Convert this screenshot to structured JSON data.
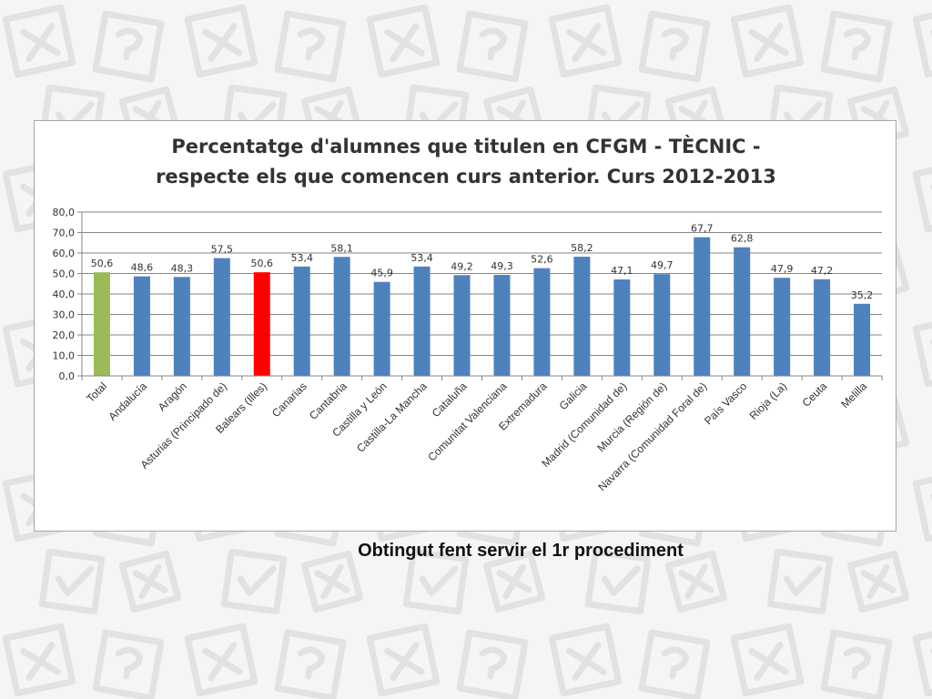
{
  "colors": {
    "bar_default": "#4f81bd",
    "bar_total": "#9bbb59",
    "bar_highlight": "#ff0000",
    "grid": "#868686",
    "text": "#333333"
  },
  "caption": "Obtingut fent servir el 1r procediment",
  "chart_data": {
    "type": "bar",
    "title_line1": "Percentatge d'alumnes que titulen en CFGM - TÈCNIC -",
    "title_line2": "respecte els que comencen curs anterior. Curs 2012-2013",
    "xlabel": "",
    "ylabel": "",
    "ylim": [
      0,
      80
    ],
    "yticks": [
      "0,0",
      "10,0",
      "20,0",
      "30,0",
      "40,0",
      "50,0",
      "60,0",
      "70,0",
      "80,0"
    ],
    "grid": true,
    "legend": "none",
    "categories": [
      "Total",
      "Andalucía",
      "Aragón",
      "Asturias (Principado de)",
      "Balears (Illes)",
      "Canarias",
      "Cantabria",
      "Castilla y León",
      "Castilla-La Mancha",
      "Cataluña",
      "Comunitat Valenciana",
      "Extremadura",
      "Galicia",
      "Madrid (Comunidad de)",
      "Murcia (Región de)",
      "Navarra (Comunidad Foral de)",
      "País Vasco",
      "Rioja (La)",
      "Ceuta",
      "Melilla"
    ],
    "values": [
      50.6,
      48.6,
      48.3,
      57.5,
      50.6,
      53.4,
      58.1,
      45.9,
      53.4,
      49.2,
      49.3,
      52.6,
      58.2,
      47.1,
      49.7,
      67.7,
      62.8,
      47.9,
      47.2,
      35.2
    ],
    "value_labels": [
      "50,6",
      "48,6",
      "48,3",
      "57,5",
      "50,6",
      "53,4",
      "58,1",
      "45,9",
      "53,4",
      "49,2",
      "49,3",
      "52,6",
      "58,2",
      "47,1",
      "49,7",
      "67,7",
      "62,8",
      "47,9",
      "47,2",
      "35,2"
    ],
    "bar_colors": [
      "#9bbb59",
      "#4f81bd",
      "#4f81bd",
      "#4f81bd",
      "#ff0000",
      "#4f81bd",
      "#4f81bd",
      "#4f81bd",
      "#4f81bd",
      "#4f81bd",
      "#4f81bd",
      "#4f81bd",
      "#4f81bd",
      "#4f81bd",
      "#4f81bd",
      "#4f81bd",
      "#4f81bd",
      "#4f81bd",
      "#4f81bd",
      "#4f81bd"
    ]
  }
}
